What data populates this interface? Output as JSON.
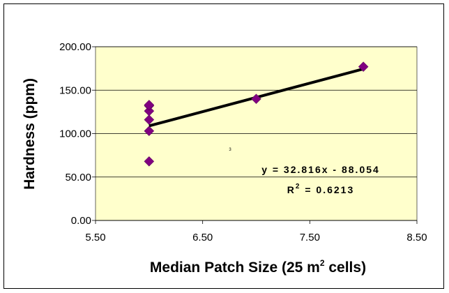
{
  "chart_data": {
    "type": "scatter",
    "title": "",
    "xlabel": "Median Patch Size (25 m",
    "xlabel_sup": "2",
    "xlabel_end": " cells)",
    "ylabel": "Hardness (ppm)",
    "xlim": [
      5.5,
      8.5
    ],
    "ylim": [
      0,
      200
    ],
    "x_ticks": [
      "5.50",
      "6.50",
      "7.50",
      "8.50"
    ],
    "y_ticks": [
      "0.00",
      "50.00",
      "100.00",
      "150.00",
      "200.00"
    ],
    "grid": "horizontal",
    "legend": "none",
    "series": [
      {
        "x": [
          6,
          6,
          6,
          6,
          6,
          6,
          7,
          8
        ],
        "y": [
          68,
          103,
          116,
          126,
          132,
          133,
          140,
          177
        ]
      }
    ],
    "trendline": {
      "slope": 32.816,
      "intercept": -88.054,
      "x_range": [
        6,
        8
      ],
      "equation": "y = 32.816x - 88.054",
      "r2_prefix": "R",
      "r2_sup": "2",
      "r2_value": " = 0.6213"
    },
    "stray_mark": "3",
    "colors": {
      "plot_bg": "#FFFFCC",
      "marker": "#800080",
      "trendline": "#000000",
      "grid": "#000000"
    }
  }
}
